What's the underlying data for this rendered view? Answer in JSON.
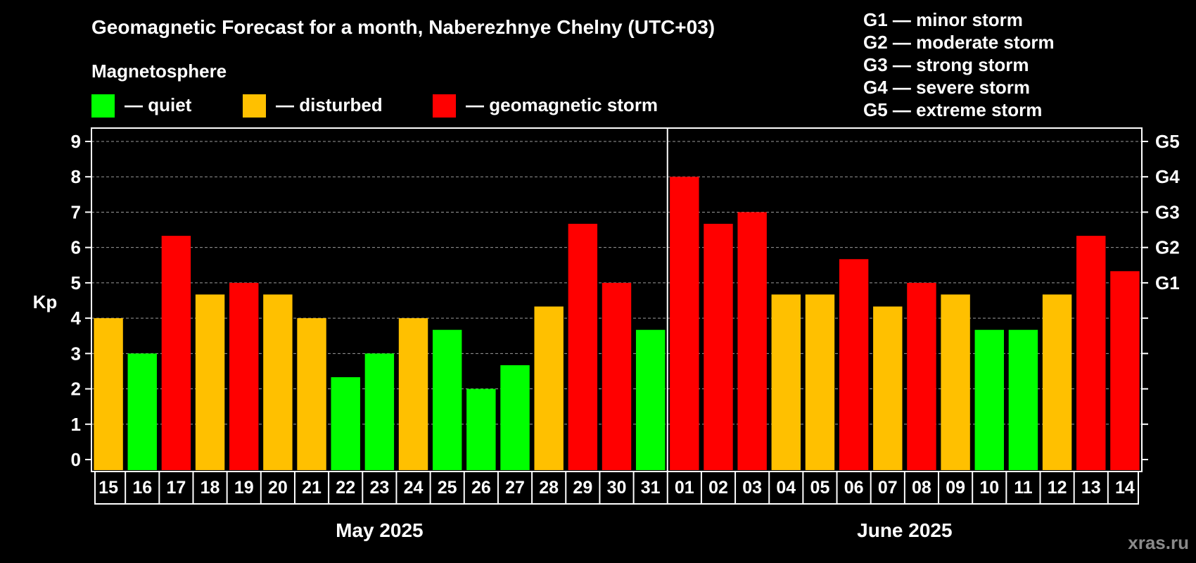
{
  "chart_data": {
    "type": "bar",
    "title": "Geomagnetic Forecast for a month, Naberezhnye Chelny (UTC+03)",
    "legend_title": "Magnetosphere",
    "legend": [
      {
        "label": "— quiet",
        "color": "#00ff00"
      },
      {
        "label": "— disturbed",
        "color": "#ffc000"
      },
      {
        "label": "— geomagnetic storm",
        "color": "#ff0000"
      }
    ],
    "storm_scale": [
      "G1 — minor storm",
      "G2 — moderate storm",
      "G3 — strong storm",
      "G4 — severe storm",
      "G5 — extreme storm"
    ],
    "ylabel": "Kp",
    "ylim": [
      0,
      9
    ],
    "yticks": [
      "0",
      "1",
      "2",
      "3",
      "4",
      "5",
      "6",
      "7",
      "8",
      "9"
    ],
    "right_axis": [
      {
        "label": "G1",
        "value": 5
      },
      {
        "label": "G2",
        "value": 6
      },
      {
        "label": "G3",
        "value": 7
      },
      {
        "label": "G4",
        "value": 8
      },
      {
        "label": "G5",
        "value": 9
      }
    ],
    "grid": true,
    "categories": [
      "15",
      "16",
      "17",
      "18",
      "19",
      "20",
      "21",
      "22",
      "23",
      "24",
      "25",
      "26",
      "27",
      "28",
      "29",
      "30",
      "31",
      "01",
      "02",
      "03",
      "04",
      "05",
      "06",
      "07",
      "08",
      "09",
      "10",
      "11",
      "12",
      "13",
      "14"
    ],
    "values": [
      4,
      3,
      6.33,
      4.67,
      5,
      4.67,
      4,
      2.33,
      3,
      4,
      3.67,
      2,
      2.67,
      4.33,
      6.67,
      5,
      3.67,
      8,
      6.67,
      7,
      4.67,
      4.67,
      5.67,
      4.33,
      5,
      4.67,
      3.67,
      3.67,
      4.67,
      6.33,
      5.33
    ],
    "status": [
      "disturbed",
      "quiet",
      "storm",
      "disturbed",
      "storm",
      "disturbed",
      "disturbed",
      "quiet",
      "quiet",
      "disturbed",
      "quiet",
      "quiet",
      "quiet",
      "disturbed",
      "storm",
      "storm",
      "quiet",
      "storm",
      "storm",
      "storm",
      "disturbed",
      "disturbed",
      "storm",
      "disturbed",
      "storm",
      "disturbed",
      "quiet",
      "quiet",
      "disturbed",
      "storm",
      "storm"
    ],
    "status_colors": {
      "quiet": "#00ff00",
      "disturbed": "#ffc000",
      "storm": "#ff0000"
    },
    "months": [
      {
        "label": "May 2025",
        "first": 0,
        "last": 16
      },
      {
        "label": "June 2025",
        "first": 17,
        "last": 30
      }
    ]
  },
  "watermark": "xras.ru"
}
